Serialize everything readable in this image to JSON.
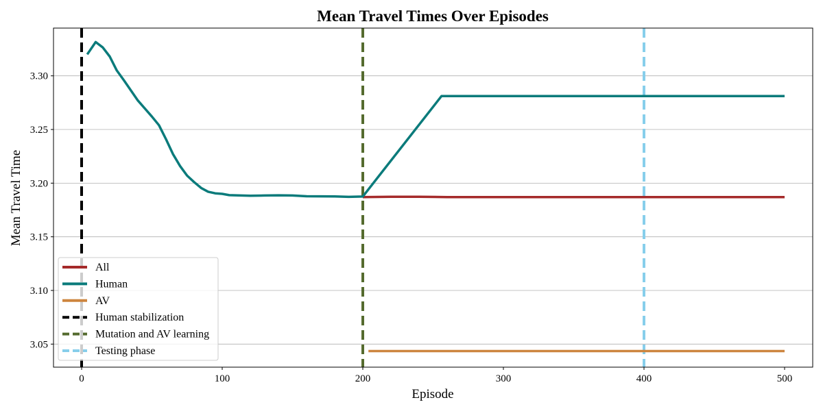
{
  "chart_data": {
    "type": "line",
    "title": "Mean Travel Times Over Episodes",
    "xlabel": "Episode",
    "ylabel": "Mean Travel Time",
    "xlim": [
      -20,
      520
    ],
    "ylim": [
      3.0285,
      3.3445
    ],
    "x_ticks": [
      0,
      100,
      200,
      300,
      400,
      500
    ],
    "y_ticks": [
      3.05,
      3.1,
      3.15,
      3.2,
      3.25,
      3.3
    ],
    "grid": "horizontal",
    "legend_position": "lower-left",
    "series": [
      {
        "name": "All",
        "color": "#a52a2a",
        "style": "solid",
        "points": [
          [
            200,
            3.187
          ],
          [
            220,
            3.1873
          ],
          [
            240,
            3.1873
          ],
          [
            260,
            3.187
          ],
          [
            300,
            3.187
          ],
          [
            350,
            3.187
          ],
          [
            400,
            3.187
          ],
          [
            450,
            3.187
          ],
          [
            500,
            3.187
          ]
        ]
      },
      {
        "name": "Human",
        "color": "#0b7b7b",
        "style": "solid",
        "points": [
          [
            4,
            3.32
          ],
          [
            10,
            3.3315
          ],
          [
            15,
            3.3265
          ],
          [
            20,
            3.318
          ],
          [
            25,
            3.305
          ],
          [
            30,
            3.296
          ],
          [
            40,
            3.277
          ],
          [
            45,
            3.2695
          ],
          [
            50,
            3.262
          ],
          [
            55,
            3.254
          ],
          [
            60,
            3.241
          ],
          [
            65,
            3.227
          ],
          [
            70,
            3.216
          ],
          [
            75,
            3.207
          ],
          [
            80,
            3.201
          ],
          [
            85,
            3.1955
          ],
          [
            90,
            3.192
          ],
          [
            95,
            3.1905
          ],
          [
            100,
            3.19
          ],
          [
            105,
            3.1888
          ],
          [
            120,
            3.1883
          ],
          [
            130,
            3.1885
          ],
          [
            140,
            3.1887
          ],
          [
            150,
            3.1885
          ],
          [
            160,
            3.1878
          ],
          [
            180,
            3.1876
          ],
          [
            190,
            3.1872
          ],
          [
            200,
            3.1875
          ],
          [
            256,
            3.2812
          ],
          [
            300,
            3.2812
          ],
          [
            400,
            3.2812
          ],
          [
            500,
            3.2812
          ]
        ]
      },
      {
        "name": "AV",
        "color": "#cd853f",
        "style": "solid",
        "points": [
          [
            204,
            3.0435
          ],
          [
            300,
            3.0435
          ],
          [
            400,
            3.0435
          ],
          [
            500,
            3.0435
          ]
        ]
      },
      {
        "name": "Human stabilization",
        "color": "#000000",
        "style": "dashed",
        "vline_x": 0
      },
      {
        "name": "Mutation and AV learning",
        "color": "#556b2f",
        "style": "dashed",
        "vline_x": 200
      },
      {
        "name": "Testing phase",
        "color": "#87ceeb",
        "style": "dashed",
        "vline_x": 400
      }
    ]
  }
}
